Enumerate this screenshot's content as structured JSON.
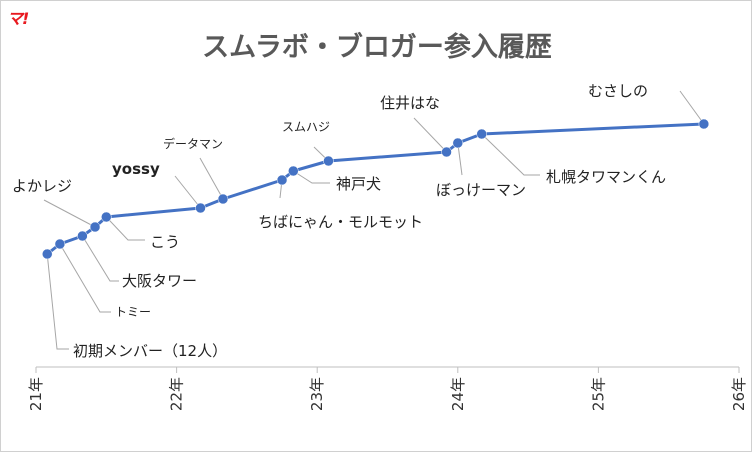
{
  "logo_text": "マ!",
  "chart_data": {
    "type": "line",
    "title": "スムラボ・ブロガー参入履歴",
    "xlabel": "",
    "ylabel": "",
    "xlim": [
      21,
      26
    ],
    "x_ticks": [
      "21年",
      "22年",
      "23年",
      "24年",
      "25年",
      "26年"
    ],
    "series": [
      {
        "color": "#4472c4",
        "points": [
          {
            "x": 21.08,
            "y": 12,
            "label": "初期メンバー（12人）"
          },
          {
            "x": 21.17,
            "y": 13,
            "label": "トミー"
          },
          {
            "x": 21.33,
            "y": 14,
            "label": "大阪タワー"
          },
          {
            "x": 21.42,
            "y": 15,
            "label": "よかレジ"
          },
          {
            "x": 21.5,
            "y": 16,
            "label": "こう"
          },
          {
            "x": 22.17,
            "y": 17,
            "label": "yossy"
          },
          {
            "x": 22.33,
            "y": 18,
            "label": "データマン"
          },
          {
            "x": 22.75,
            "y": 19,
            "label": "ちばにゃん・モルモット"
          },
          {
            "x": 22.83,
            "y": 20,
            "label": "神戸犬"
          },
          {
            "x": 23.08,
            "y": 21,
            "label": "スムハジ"
          },
          {
            "x": 23.92,
            "y": 22,
            "label": "住井はな"
          },
          {
            "x": 24.0,
            "y": 23,
            "label": "ぼっけーマン"
          },
          {
            "x": 24.17,
            "y": 24,
            "label": "札幌タワマンくん"
          },
          {
            "x": 25.75,
            "y": 25,
            "label": "むさしの"
          }
        ]
      }
    ],
    "grid": false,
    "legend": "none"
  }
}
